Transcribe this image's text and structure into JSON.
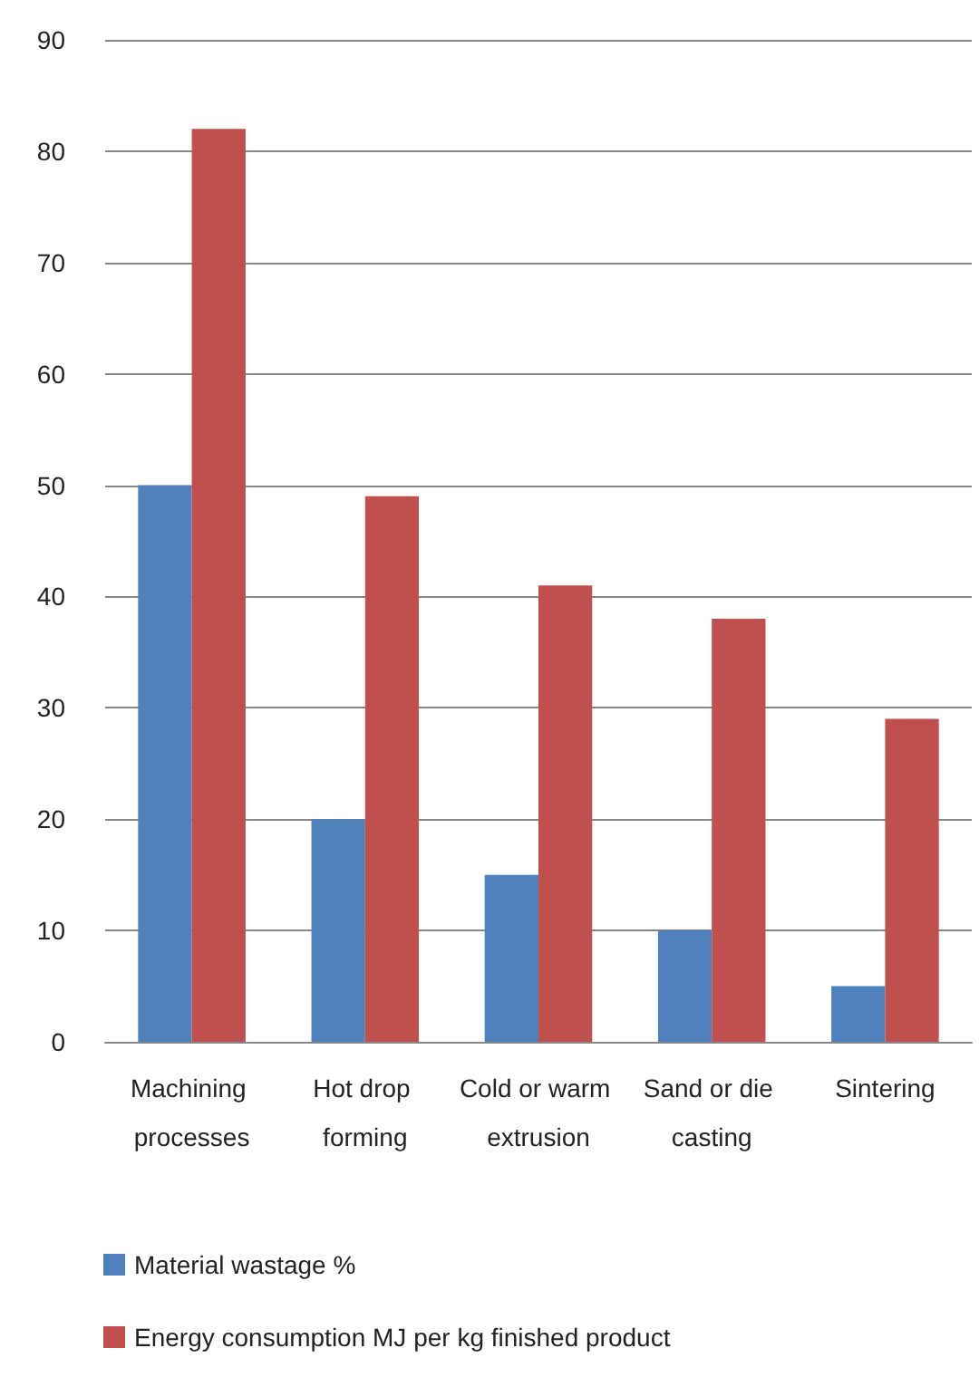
{
  "chart_data": {
    "type": "bar",
    "categories": [
      "Machining processes",
      "Hot drop forming",
      "Cold or warm extrusion",
      "Sand or die casting",
      "Sintering"
    ],
    "series": [
      {
        "name": "Material wastage %",
        "color": "#4f81bd",
        "values": [
          50,
          20,
          15,
          10,
          5
        ]
      },
      {
        "name": "Energy consumption MJ per kg finished product",
        "color": "#c0504d",
        "values": [
          82,
          49,
          41,
          38,
          29
        ]
      }
    ],
    "ylim": [
      0,
      90
    ],
    "yticks": [
      0,
      10,
      20,
      30,
      40,
      50,
      60,
      70,
      80,
      90
    ],
    "grid": "y",
    "legend": "bottom"
  }
}
